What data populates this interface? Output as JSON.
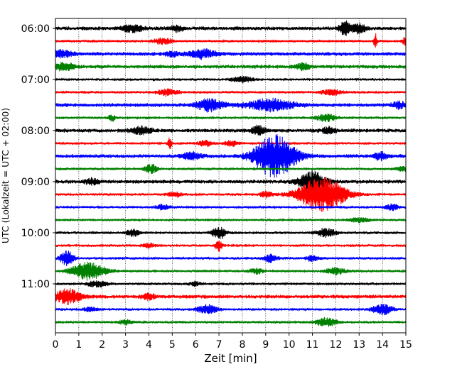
{
  "chart_data": {
    "type": "line",
    "title": "",
    "xlabel": "Zeit  [min]",
    "ylabel": "UTC (Lokalzeit = UTC + 02:00)",
    "xlim": [
      0,
      15
    ],
    "x_ticks": [
      "0",
      "1",
      "2",
      "3",
      "4",
      "5",
      "6",
      "7",
      "8",
      "9",
      "10",
      "11",
      "12",
      "13",
      "14",
      "15"
    ],
    "y_tick_labels": [
      "06:00",
      "07:00",
      "08:00",
      "09:00",
      "10:00",
      "11:00"
    ],
    "grid": "vertical dotted",
    "trace_interval_minutes": 15,
    "color_cycle": [
      "#000000",
      "#ff0000",
      "#0000ff",
      "#008000"
    ],
    "traces": [
      {
        "time": "06:00",
        "color": "#000000",
        "noise": 3,
        "events": [
          [
            3.3,
            5,
            0.3
          ],
          [
            5.2,
            4,
            0.2
          ],
          [
            12.4,
            9,
            0.2
          ],
          [
            13.0,
            6,
            0.2
          ]
        ]
      },
      {
        "time": "06:15",
        "color": "#ff0000",
        "noise": 2,
        "events": [
          [
            4.6,
            4,
            0.3
          ],
          [
            13.7,
            10,
            0.05
          ],
          [
            15.0,
            6,
            0.1
          ]
        ]
      },
      {
        "time": "06:30",
        "color": "#0000ff",
        "noise": 3,
        "events": [
          [
            0.3,
            5,
            0.3
          ],
          [
            6.3,
            6,
            0.4
          ],
          [
            5.0,
            3,
            0.2
          ]
        ]
      },
      {
        "time": "06:45",
        "color": "#008000",
        "noise": 3,
        "events": [
          [
            0.4,
            5,
            0.3
          ],
          [
            10.6,
            4,
            0.2
          ]
        ]
      },
      {
        "time": "07:00",
        "color": "#000000",
        "noise": 2,
        "events": [
          [
            8.0,
            4,
            0.3
          ]
        ]
      },
      {
        "time": "07:15",
        "color": "#ff0000",
        "noise": 2,
        "events": [
          [
            4.8,
            5,
            0.3
          ],
          [
            11.8,
            4,
            0.3
          ]
        ]
      },
      {
        "time": "07:30",
        "color": "#0000ff",
        "noise": 3,
        "events": [
          [
            6.6,
            8,
            0.4
          ],
          [
            9.2,
            8,
            0.7
          ],
          [
            14.7,
            4,
            0.2
          ]
        ]
      },
      {
        "time": "07:45",
        "color": "#008000",
        "noise": 2,
        "events": [
          [
            2.4,
            5,
            0.1
          ],
          [
            11.6,
            5,
            0.3
          ]
        ]
      },
      {
        "time": "08:00",
        "color": "#000000",
        "noise": 3,
        "events": [
          [
            3.7,
            5,
            0.3
          ],
          [
            8.7,
            6,
            0.2
          ],
          [
            11.7,
            4,
            0.2
          ]
        ]
      },
      {
        "time": "08:15",
        "color": "#ff0000",
        "noise": 2,
        "events": [
          [
            4.9,
            10,
            0.05
          ],
          [
            6.4,
            4,
            0.2
          ],
          [
            7.5,
            4,
            0.2
          ]
        ]
      },
      {
        "time": "08:30",
        "color": "#0000ff",
        "noise": 3,
        "events": [
          [
            5.8,
            5,
            0.3
          ],
          [
            9.4,
            30,
            0.6
          ],
          [
            13.9,
            5,
            0.2
          ]
        ]
      },
      {
        "time": "08:45",
        "color": "#008000",
        "noise": 2,
        "events": [
          [
            4.1,
            6,
            0.2
          ],
          [
            14.9,
            4,
            0.2
          ]
        ]
      },
      {
        "time": "09:00",
        "color": "#000000",
        "noise": 3,
        "events": [
          [
            11.0,
            14,
            0.4
          ],
          [
            1.6,
            4,
            0.2
          ]
        ]
      },
      {
        "time": "09:15",
        "color": "#ff0000",
        "noise": 2,
        "events": [
          [
            11.4,
            24,
            0.7
          ],
          [
            5.1,
            4,
            0.2
          ],
          [
            9.0,
            4,
            0.2
          ]
        ]
      },
      {
        "time": "09:30",
        "color": "#0000ff",
        "noise": 2,
        "events": [
          [
            4.6,
            4,
            0.2
          ],
          [
            14.4,
            4,
            0.2
          ]
        ]
      },
      {
        "time": "09:45",
        "color": "#008000",
        "noise": 2,
        "events": [
          [
            13.0,
            3,
            0.3
          ]
        ]
      },
      {
        "time": "10:00",
        "color": "#000000",
        "noise": 2,
        "events": [
          [
            3.3,
            5,
            0.2
          ],
          [
            7.0,
            9,
            0.2
          ],
          [
            11.6,
            6,
            0.3
          ]
        ]
      },
      {
        "time": "10:15",
        "color": "#ff0000",
        "noise": 2,
        "events": [
          [
            7.0,
            8,
            0.1
          ],
          [
            4.0,
            3,
            0.2
          ]
        ]
      },
      {
        "time": "10:30",
        "color": "#0000ff",
        "noise": 2,
        "events": [
          [
            0.5,
            10,
            0.2
          ],
          [
            9.2,
            5,
            0.2
          ],
          [
            11.0,
            4,
            0.2
          ]
        ]
      },
      {
        "time": "10:45",
        "color": "#008000",
        "noise": 2,
        "events": [
          [
            1.4,
            12,
            0.5
          ],
          [
            12.0,
            5,
            0.3
          ],
          [
            8.6,
            4,
            0.2
          ]
        ]
      },
      {
        "time": "11:00",
        "color": "#000000",
        "noise": 2,
        "events": [
          [
            1.8,
            4,
            0.3
          ],
          [
            6.0,
            3,
            0.2
          ]
        ]
      },
      {
        "time": "11:15",
        "color": "#ff0000",
        "noise": 3,
        "events": [
          [
            0.5,
            10,
            0.4
          ],
          [
            4.0,
            4,
            0.2
          ]
        ]
      },
      {
        "time": "11:30",
        "color": "#0000ff",
        "noise": 2,
        "events": [
          [
            6.5,
            6,
            0.3
          ],
          [
            14.0,
            7,
            0.3
          ],
          [
            1.5,
            3,
            0.2
          ]
        ]
      },
      {
        "time": "11:45",
        "color": "#008000",
        "noise": 2,
        "events": [
          [
            11.6,
            6,
            0.3
          ],
          [
            3.0,
            3,
            0.2
          ]
        ]
      }
    ]
  }
}
